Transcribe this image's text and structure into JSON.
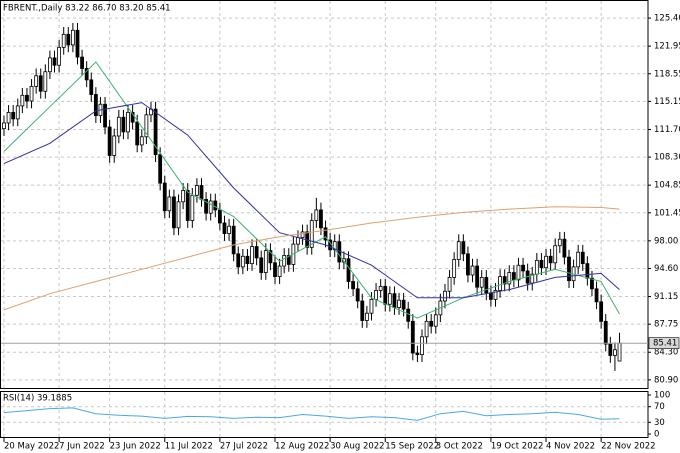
{
  "chart_data": {
    "type": "candlestick",
    "title": "FBRENT.,Daily  83.22 86.70 83.20 85.41",
    "xlim": [
      -0.65,
      140.2
    ],
    "ylim": [
      79.9,
      127.5
    ],
    "yticks": [
      {
        "value": 125.4,
        "label": "125.40"
      },
      121.95,
      118.55,
      115.15,
      {
        "value": 111.7,
        "label": "111.70"
      },
      {
        "value": 108.3,
        "label": "108.30"
      },
      104.85,
      101.45,
      {
        "value": 98,
        "label": "98.00"
      },
      {
        "value": 94.6,
        "label": "94.60"
      },
      91.15,
      87.75,
      {
        "value": 84.3,
        "label": "84.30"
      },
      {
        "value": 80.9,
        "label": "80.90"
      }
    ],
    "xticks": [
      {
        "value": 0,
        "label": "20 May 2022"
      },
      {
        "value": 12,
        "label": "7 Jun 2022"
      },
      {
        "value": 23,
        "label": "23 Jun 2022"
      },
      {
        "value": 35,
        "label": "11 Jul 2022"
      },
      {
        "value": 47,
        "label": "27 Jul 2022"
      },
      {
        "value": 59,
        "label": "12 Aug 2022"
      },
      {
        "value": 71,
        "label": "30 Aug 2022"
      },
      {
        "value": 83,
        "label": "15 Sep 2022"
      },
      {
        "value": 94,
        "label": "3 Oct 2022"
      },
      {
        "value": 106,
        "label": "19 Oct 2022"
      },
      {
        "value": 118,
        "label": "4 Nov 2022"
      },
      {
        "value": 130,
        "label": "22 Nov 2022"
      }
    ],
    "grid": true,
    "up_color": "#ffffff",
    "down_color": "#000000",
    "open": [
      111.8,
      112.5,
      113.8,
      113.0,
      114.6,
      115.9,
      115.2,
      117.0,
      118.3,
      116.4,
      118.8,
      120.5,
      119.6,
      121.8,
      123.4,
      122.1,
      123.9,
      120.6,
      119.2,
      117.8,
      116.0,
      113.4,
      114.8,
      112.0,
      108.5,
      110.9,
      113.2,
      111.4,
      113.8,
      112.6,
      109.8,
      110.8,
      113.5,
      114.2,
      108.6,
      105.1,
      101.7,
      103.4,
      99.6,
      102.8,
      104.2,
      100.5,
      103.6,
      104.8,
      103.1,
      101.4,
      102.9,
      101.8,
      100.2,
      98.9,
      99.8,
      96.4,
      94.8,
      96.1,
      95.2,
      97.3,
      95.9,
      94.1,
      96.8,
      95.3,
      93.6,
      94.9,
      96.2,
      95.1,
      97.6,
      98.4,
      99.1,
      97.2,
      100.5,
      101.8,
      99.6,
      98.1,
      96.9,
      97.9,
      95.4,
      95.8,
      93.0,
      92.1,
      90.6,
      88.2,
      89.1,
      90.8,
      91.9,
      92.4,
      90.2,
      91.5,
      89.8,
      90.7,
      89.6,
      88.1,
      84.2,
      84.0,
      86.2,
      88.1,
      87.5,
      88.9,
      90.6,
      91.8,
      93.5,
      95.7,
      97.9,
      96.4,
      93.8,
      94.9,
      92.3,
      93.5,
      91.6,
      90.8,
      91.9,
      93.6,
      92.7,
      94.1,
      93.2,
      95.0,
      94.3,
      92.8,
      93.9,
      95.6,
      94.7,
      96.1,
      95.3,
      97.4,
      98.2,
      96.0,
      93.1,
      94.8,
      96.6,
      95.2,
      93.4,
      92.1,
      90.5,
      88.1,
      85.3,
      83.9,
      83.22
    ],
    "high": [
      113.4,
      114.7,
      114.7,
      115.5,
      116.8,
      116.8,
      117.9,
      119.2,
      119.2,
      119.7,
      121.4,
      121.4,
      122.7,
      124.3,
      124.3,
      124.8,
      124.8,
      121.5,
      120.1,
      118.7,
      116.9,
      115.7,
      115.7,
      112.9,
      111.8,
      114.1,
      114.1,
      114.7,
      114.7,
      113.5,
      111.7,
      114.4,
      115.1,
      115.1,
      109.5,
      106.0,
      104.3,
      104.3,
      103.7,
      105.1,
      105.1,
      104.5,
      105.7,
      105.7,
      104.0,
      103.8,
      103.8,
      102.7,
      101.1,
      100.7,
      100.7,
      97.3,
      97.0,
      97.0,
      98.2,
      98.2,
      96.8,
      97.7,
      97.7,
      96.2,
      95.8,
      97.1,
      97.1,
      98.5,
      99.3,
      100.0,
      100.0,
      101.4,
      103.3,
      102.7,
      100.5,
      99.0,
      98.8,
      98.8,
      96.7,
      96.7,
      93.9,
      93.0,
      91.5,
      90.0,
      91.7,
      92.8,
      93.3,
      93.3,
      92.4,
      92.4,
      91.6,
      91.6,
      90.5,
      89.0,
      85.1,
      87.1,
      89.0,
      89.0,
      89.8,
      91.5,
      92.7,
      94.4,
      96.6,
      98.8,
      98.8,
      97.3,
      95.8,
      95.8,
      94.4,
      94.4,
      92.5,
      92.8,
      94.5,
      94.5,
      95.0,
      95.0,
      95.9,
      95.9,
      95.2,
      94.8,
      96.5,
      96.5,
      97.0,
      97.0,
      98.3,
      99.1,
      99.1,
      96.9,
      95.7,
      97.5,
      97.5,
      96.1,
      94.3,
      93.0,
      91.4,
      89.0,
      86.2,
      85.5,
      86.7
    ],
    "low": [
      110.9,
      111.6,
      112.1,
      112.1,
      113.7,
      114.3,
      114.3,
      116.1,
      115.5,
      115.5,
      117.9,
      118.7,
      118.7,
      120.9,
      121.2,
      121.2,
      119.7,
      118.3,
      116.9,
      115.1,
      112.5,
      112.5,
      111.1,
      107.6,
      107.6,
      110.0,
      110.5,
      110.5,
      111.7,
      108.9,
      108.9,
      109.9,
      112.6,
      107.7,
      104.2,
      100.8,
      100.8,
      98.7,
      98.7,
      101.9,
      99.6,
      99.6,
      102.7,
      102.2,
      100.5,
      100.5,
      100.9,
      99.3,
      98.0,
      98.0,
      95.5,
      93.9,
      93.9,
      94.3,
      94.3,
      95.0,
      93.2,
      93.2,
      94.4,
      92.7,
      92.7,
      94.0,
      94.2,
      94.2,
      96.7,
      97.5,
      96.3,
      96.3,
      99.6,
      98.7,
      97.2,
      96.0,
      96.0,
      94.5,
      94.5,
      92.1,
      91.2,
      89.7,
      87.3,
      87.3,
      88.2,
      89.9,
      91.0,
      89.3,
      89.3,
      88.9,
      88.9,
      88.7,
      87.2,
      83.3,
      83.1,
      83.1,
      85.3,
      86.6,
      86.6,
      88.0,
      89.7,
      90.9,
      92.6,
      94.8,
      95.5,
      92.9,
      92.9,
      91.4,
      91.4,
      90.7,
      89.9,
      89.9,
      91.0,
      91.8,
      91.8,
      92.3,
      92.3,
      93.4,
      91.9,
      91.9,
      93.0,
      93.8,
      93.8,
      94.4,
      94.4,
      96.5,
      95.1,
      92.2,
      92.2,
      93.9,
      94.3,
      92.5,
      91.2,
      89.6,
      87.2,
      84.4,
      83.0,
      82.0,
      83.2
    ],
    "close": [
      112.5,
      113.8,
      113.0,
      114.6,
      115.9,
      115.2,
      117.0,
      118.3,
      116.4,
      118.8,
      120.5,
      119.6,
      121.8,
      123.4,
      122.1,
      123.9,
      120.6,
      119.2,
      117.8,
      116.0,
      113.4,
      114.8,
      112.0,
      108.5,
      110.9,
      113.2,
      111.4,
      113.8,
      112.6,
      109.8,
      110.8,
      113.5,
      114.2,
      108.6,
      105.1,
      101.7,
      103.4,
      99.6,
      102.8,
      104.2,
      100.5,
      103.6,
      104.8,
      103.1,
      101.4,
      102.9,
      101.8,
      100.2,
      98.9,
      99.8,
      96.4,
      94.8,
      96.1,
      95.2,
      97.3,
      95.9,
      94.1,
      96.8,
      95.3,
      93.6,
      94.9,
      96.2,
      95.1,
      97.6,
      98.4,
      99.1,
      97.2,
      100.5,
      101.8,
      99.6,
      98.1,
      96.9,
      97.9,
      95.4,
      95.8,
      93.0,
      92.1,
      90.6,
      88.2,
      89.1,
      90.8,
      91.9,
      92.4,
      90.2,
      91.5,
      89.8,
      90.7,
      89.6,
      88.1,
      84.2,
      84.0,
      86.2,
      88.1,
      87.5,
      88.9,
      90.6,
      91.8,
      93.5,
      95.7,
      97.9,
      96.4,
      93.8,
      94.9,
      92.3,
      93.5,
      91.6,
      90.8,
      91.9,
      93.6,
      92.7,
      94.1,
      93.2,
      95.0,
      94.3,
      92.8,
      93.9,
      95.6,
      94.7,
      96.1,
      95.3,
      97.4,
      98.2,
      96.0,
      93.1,
      94.8,
      96.6,
      95.2,
      93.4,
      92.1,
      90.5,
      88.1,
      85.3,
      83.9,
      84.6,
      85.41
    ],
    "lines": [
      {
        "color": "#3cb371",
        "x": [
          0,
          10,
          20,
          30,
          40,
          50,
          60,
          70,
          80,
          90,
          100,
          110,
          120,
          130,
          134
        ],
        "values": [
          109,
          114.5,
          120,
          112,
          104,
          101,
          95.5,
          98.5,
          91,
          88.5,
          91,
          93,
          94.5,
          93,
          89
        ]
      },
      {
        "color": "#3030a0",
        "x": [
          0,
          10,
          20,
          30,
          40,
          50,
          60,
          70,
          80,
          90,
          100,
          110,
          120,
          130,
          134
        ],
        "values": [
          107.5,
          110,
          114,
          115,
          111,
          104.5,
          99,
          97.5,
          95,
          91,
          91,
          92,
          93.5,
          94,
          92
        ]
      },
      {
        "color": "#e0a070",
        "x": [
          0,
          10,
          20,
          30,
          40,
          50,
          60,
          70,
          80,
          90,
          100,
          110,
          120,
          130,
          134
        ],
        "values": [
          89.5,
          91.5,
          93,
          94.5,
          96,
          97.5,
          98.5,
          99.3,
          100.2,
          100.9,
          101.5,
          101.9,
          102.2,
          102.1,
          101.9
        ]
      }
    ],
    "rsi": {
      "label": "RSI(14) 39.1885",
      "color": "#4aa8e8",
      "ylim": [
        0,
        100
      ],
      "yticks": [
        100,
        70,
        30,
        0
      ],
      "x": [
        0,
        5,
        10,
        15,
        20,
        25,
        30,
        35,
        40,
        45,
        50,
        55,
        60,
        65,
        70,
        75,
        80,
        85,
        90,
        95,
        100,
        105,
        110,
        115,
        120,
        125,
        130,
        134
      ],
      "values": [
        55,
        60,
        65,
        67,
        52,
        48,
        46,
        40,
        45,
        44,
        40,
        43,
        42,
        50,
        46,
        40,
        44,
        42,
        35,
        52,
        58,
        47,
        50,
        52,
        56,
        50,
        38,
        39.1885
      ]
    }
  }
}
